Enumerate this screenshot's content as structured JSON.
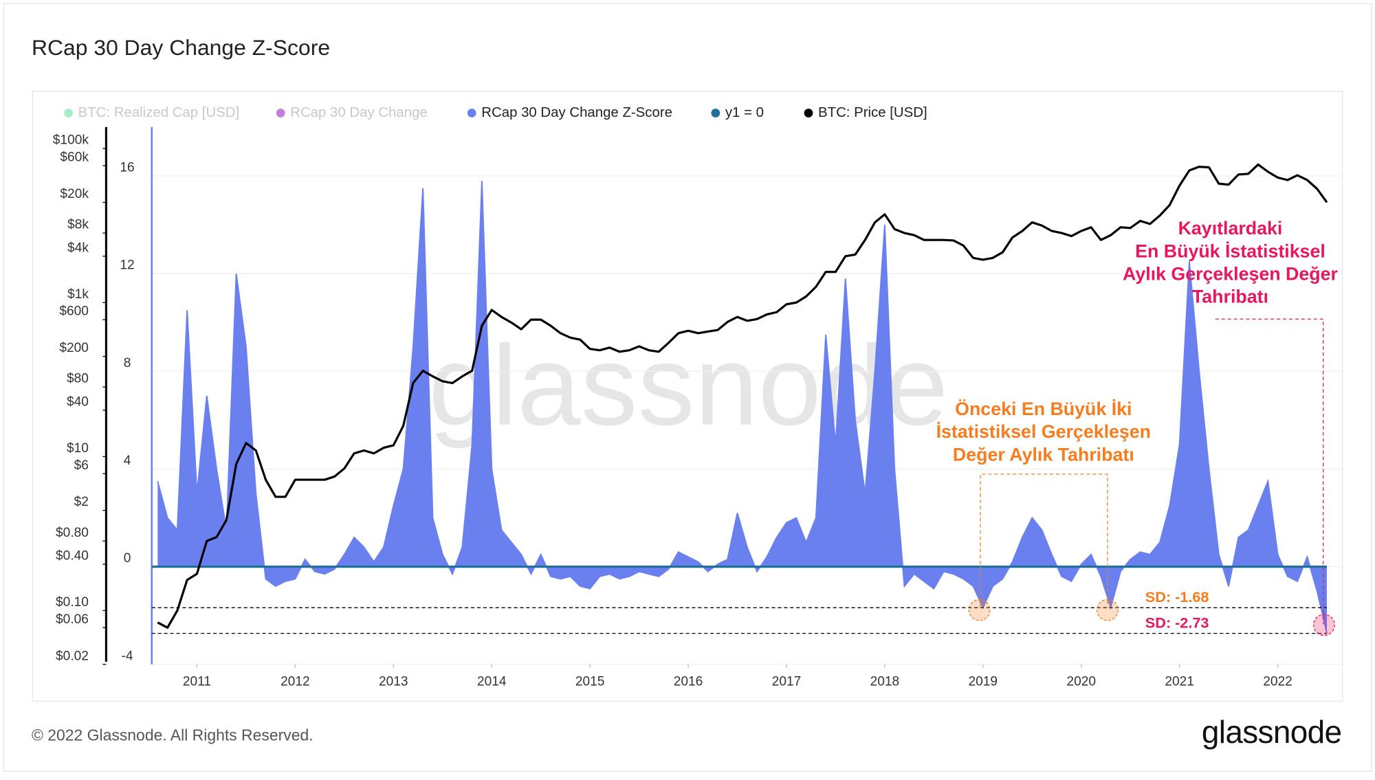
{
  "chart_data": {
    "type": "area-line",
    "title": "RCap 30 Day Change Z-Score",
    "footer": "© 2022 Glassnode. All Rights Reserved.",
    "logo": "glassnode",
    "watermark": "glassnode",
    "grid": true,
    "x": [
      2010.6,
      2010.7,
      2010.8,
      2010.9,
      2011.0,
      2011.1,
      2011.2,
      2011.3,
      2011.4,
      2011.5,
      2011.6,
      2011.7,
      2011.8,
      2011.9,
      2012.0,
      2012.1,
      2012.2,
      2012.3,
      2012.4,
      2012.5,
      2012.6,
      2012.7,
      2012.8,
      2012.9,
      2013.0,
      2013.1,
      2013.2,
      2013.3,
      2013.4,
      2013.5,
      2013.6,
      2013.7,
      2013.8,
      2013.9,
      2014.0,
      2014.1,
      2014.2,
      2014.3,
      2014.4,
      2014.5,
      2014.6,
      2014.7,
      2014.8,
      2014.9,
      2015.0,
      2015.1,
      2015.2,
      2015.3,
      2015.4,
      2015.5,
      2015.6,
      2015.7,
      2015.8,
      2015.9,
      2016.0,
      2016.1,
      2016.2,
      2016.3,
      2016.4,
      2016.5,
      2016.6,
      2016.7,
      2016.8,
      2016.9,
      2017.0,
      2017.1,
      2017.2,
      2017.3,
      2017.4,
      2017.5,
      2017.6,
      2017.7,
      2017.8,
      2017.9,
      2018.0,
      2018.1,
      2018.2,
      2018.3,
      2018.4,
      2018.5,
      2018.6,
      2018.7,
      2018.8,
      2018.9,
      2019.0,
      2019.1,
      2019.2,
      2019.3,
      2019.4,
      2019.5,
      2019.6,
      2019.7,
      2019.8,
      2019.9,
      2020.0,
      2020.1,
      2020.2,
      2020.3,
      2020.4,
      2020.5,
      2020.6,
      2020.7,
      2020.8,
      2020.9,
      2021.0,
      2021.1,
      2021.2,
      2021.3,
      2021.4,
      2021.5,
      2021.6,
      2021.7,
      2021.8,
      2021.9,
      2022.0,
      2022.1,
      2022.2,
      2022.3,
      2022.4,
      2022.5
    ],
    "xlim": [
      2010.54,
      2022.65
    ],
    "xticks": [
      2011,
      2012,
      2013,
      2014,
      2015,
      2016,
      2017,
      2018,
      2019,
      2020,
      2021,
      2022
    ],
    "ylim": [
      -4,
      18
    ],
    "yticks": [
      -4,
      0,
      4,
      8,
      12,
      16
    ],
    "y2log": true,
    "y2lim": [
      0.02,
      190000
    ],
    "y2ticks": [
      {
        "value": 100000,
        "label": "$100k"
      },
      {
        "value": 60000,
        "label": "$60k"
      },
      {
        "value": 20000,
        "label": "$20k"
      },
      {
        "value": 8000,
        "label": "$8k"
      },
      {
        "value": 4000,
        "label": "$4k"
      },
      {
        "value": 1000,
        "label": "$1k"
      },
      {
        "value": 600,
        "label": "$600"
      },
      {
        "value": 200,
        "label": "$200"
      },
      {
        "value": 80,
        "label": "$80"
      },
      {
        "value": 40,
        "label": "$40"
      },
      {
        "value": 10,
        "label": "$10"
      },
      {
        "value": 6,
        "label": "$6"
      },
      {
        "value": 2,
        "label": "$2"
      },
      {
        "value": 0.8,
        "label": "$0.80"
      },
      {
        "value": 0.4,
        "label": "$0.40"
      },
      {
        "value": 0.1,
        "label": "$0.10"
      },
      {
        "value": 0.06,
        "label": "$0.06"
      },
      {
        "value": 0.02,
        "label": "$0.02"
      }
    ],
    "series": [
      {
        "name": "BTC: Realized Cap [USD]",
        "color": "#6ee0a0",
        "hidden": true
      },
      {
        "name": "RCap 30 Day Change",
        "color": "#9b2bc0",
        "hidden": true
      },
      {
        "name": "RCap 30 Day Change Z-Score",
        "color": "#6b80ef",
        "kind": "area",
        "values": [
          3.5,
          2.0,
          1.5,
          10.5,
          3,
          7,
          4,
          1.5,
          12,
          9,
          3,
          -0.5,
          -0.8,
          -0.6,
          -0.5,
          0.3,
          -0.2,
          -0.3,
          -0.1,
          0.5,
          1.2,
          0.8,
          0.2,
          0.8,
          2.5,
          4,
          9,
          15.5,
          2,
          0.5,
          -0.3,
          0.8,
          5,
          15.8,
          4,
          1.5,
          1.0,
          0.5,
          -0.3,
          0.5,
          -0.4,
          -0.5,
          -0.4,
          -0.8,
          -0.9,
          -0.4,
          -0.3,
          -0.5,
          -0.4,
          -0.2,
          -0.3,
          -0.4,
          -0.1,
          0.6,
          0.4,
          0.2,
          -0.2,
          0.1,
          0.3,
          2.2,
          0.8,
          -0.2,
          0.4,
          1.2,
          1.8,
          2.0,
          1.0,
          2.0,
          9.5,
          5,
          11.8,
          6,
          3,
          8,
          14,
          4,
          -0.8,
          -0.3,
          -0.6,
          -0.9,
          -0.2,
          -0.3,
          -0.5,
          -0.8,
          -1.68,
          -0.8,
          -0.5,
          0.2,
          1.2,
          2.0,
          1.5,
          0.5,
          -0.4,
          -0.6,
          0.1,
          0.5,
          -0.4,
          -1.68,
          -0.2,
          0.3,
          0.6,
          0.5,
          1.0,
          2.5,
          5,
          12.5,
          8,
          4,
          0.5,
          -0.8,
          1.2,
          1.5,
          2.5,
          3.5,
          0.5,
          -0.4,
          -0.6,
          0.4,
          -1.0,
          -2.73
        ]
      },
      {
        "name": "y1 = 0",
        "color": "#1f6f9f",
        "kind": "constant",
        "value": 0
      },
      {
        "name": "BTC: Price [USD]",
        "color": "#000000",
        "kind": "line",
        "axis": "y2",
        "values": [
          0.07,
          0.06,
          0.1,
          0.25,
          0.3,
          0.8,
          0.9,
          1.5,
          8,
          15,
          12,
          5,
          3,
          3,
          5,
          5,
          5,
          5,
          5.5,
          7,
          11,
          12,
          11,
          13,
          14,
          25,
          90,
          130,
          110,
          95,
          90,
          110,
          130,
          500,
          800,
          650,
          550,
          450,
          600,
          600,
          500,
          400,
          350,
          330,
          250,
          240,
          260,
          230,
          240,
          270,
          240,
          230,
          300,
          400,
          430,
          400,
          420,
          440,
          560,
          650,
          580,
          610,
          700,
          750,
          950,
          1000,
          1200,
          1600,
          2500,
          2500,
          4000,
          4200,
          6500,
          11000,
          14000,
          9000,
          8000,
          7500,
          6500,
          6500,
          6500,
          6400,
          5500,
          3800,
          3600,
          3800,
          4500,
          7000,
          8500,
          11000,
          10000,
          8500,
          8000,
          7300,
          8500,
          9500,
          6500,
          7500,
          9500,
          9300,
          11500,
          10500,
          13500,
          18500,
          33000,
          52000,
          58000,
          57000,
          35000,
          34000,
          46000,
          47000,
          62000,
          50000,
          42000,
          39000,
          45000,
          39000,
          30000,
          20000
        ]
      }
    ],
    "reference_lines": [
      {
        "value": -1.68,
        "label": "SD: -1.68",
        "label_color": "#f57c1f"
      },
      {
        "value": -2.73,
        "label": "SD: -2.73",
        "label_color": "#e8175d"
      }
    ],
    "annotations": [
      {
        "lines": [
          "Önceki En Büyük İki",
          "İstatistiksel Gerçekleşen",
          "Değer Aylık Tahribatı"
        ],
        "color": "#f57c1f"
      },
      {
        "lines": [
          "Kayıtlardaki",
          "En Büyük İstatistiksel",
          "Aylık Gerçekleşen Değer",
          "Tahribatı"
        ],
        "color": "#e8175d"
      }
    ]
  }
}
